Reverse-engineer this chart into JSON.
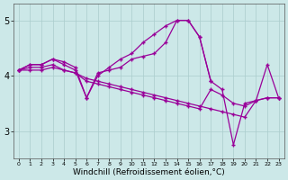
{
  "background_color": "#cce8e8",
  "grid_color": "#aacccc",
  "line_color": "#990099",
  "xlim": [
    -0.5,
    23.5
  ],
  "ylim": [
    2.5,
    5.3
  ],
  "xlabel": "Windchill (Refroidissement éolien,°C)",
  "xlabel_fontsize": 6.5,
  "xticks": [
    0,
    1,
    2,
    3,
    4,
    5,
    6,
    7,
    8,
    9,
    10,
    11,
    12,
    13,
    14,
    15,
    16,
    17,
    18,
    19,
    20,
    21,
    22,
    23
  ],
  "yticks": [
    3,
    4,
    5
  ],
  "line1_x": [
    0,
    1,
    2,
    3,
    4,
    5,
    6,
    7,
    8,
    9,
    10,
    11,
    12,
    13,
    14,
    15,
    16,
    17,
    18,
    19,
    20,
    21,
    22,
    23
  ],
  "line1_y": [
    4.1,
    4.2,
    4.2,
    4.3,
    4.25,
    4.15,
    3.6,
    4.0,
    4.15,
    4.3,
    4.4,
    4.6,
    4.75,
    4.9,
    5.0,
    5.0,
    4.7,
    3.9,
    3.75,
    2.75,
    3.5,
    3.55,
    3.6,
    3.6
  ],
  "line2_x": [
    0,
    1,
    2,
    3,
    4,
    5,
    6,
    7,
    8,
    9,
    10,
    11,
    12,
    13,
    14,
    15,
    16,
    17
  ],
  "line2_y": [
    4.1,
    4.2,
    4.2,
    4.3,
    4.2,
    4.1,
    3.6,
    4.05,
    4.1,
    4.15,
    4.3,
    4.35,
    4.4,
    4.6,
    5.0,
    5.0,
    4.7,
    3.9
  ],
  "line3_x": [
    0,
    1,
    2,
    3,
    4,
    5,
    6,
    7,
    8,
    9,
    10,
    11,
    12,
    13,
    14,
    15,
    16,
    17,
    18,
    19,
    20,
    21,
    22,
    23
  ],
  "line3_y": [
    4.1,
    4.15,
    4.15,
    4.2,
    4.1,
    4.05,
    3.95,
    3.9,
    3.85,
    3.8,
    3.75,
    3.7,
    3.65,
    3.6,
    3.55,
    3.5,
    3.45,
    3.4,
    3.35,
    3.3,
    3.25,
    3.55,
    4.2,
    3.6
  ],
  "line4_x": [
    0,
    1,
    2,
    3,
    4,
    5,
    6,
    7,
    8,
    9,
    10,
    11,
    12,
    13,
    14,
    15,
    16,
    17,
    18,
    19,
    20,
    21,
    22,
    23
  ],
  "line4_y": [
    4.1,
    4.1,
    4.1,
    4.15,
    4.1,
    4.05,
    3.9,
    3.85,
    3.8,
    3.75,
    3.7,
    3.65,
    3.6,
    3.55,
    3.5,
    3.45,
    3.4,
    3.75,
    3.65,
    3.5,
    3.45,
    3.55,
    3.6,
    3.6
  ]
}
